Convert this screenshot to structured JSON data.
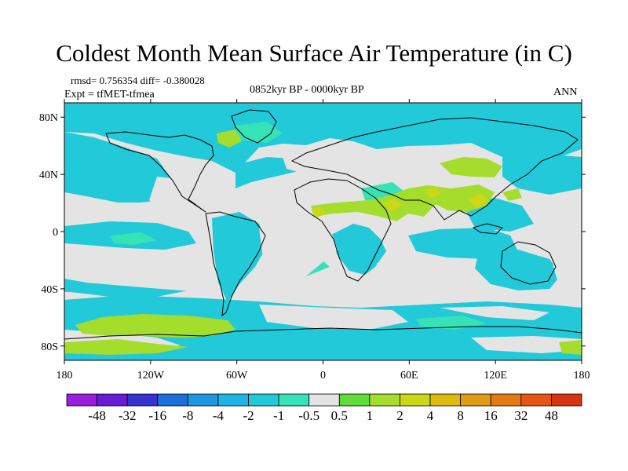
{
  "title": "Coldest Month Mean Surface Air Temperature (in C)",
  "stats": "rmsd= 0.756354 diff= -0.380028",
  "experiment": "Expt = tfMET-tfmea",
  "period": "0852kyr BP - 0000kyr BP",
  "season": "ANN",
  "axes": {
    "x_ticks": [
      {
        "lon": -180,
        "label": "180"
      },
      {
        "lon": -120,
        "label": "120W"
      },
      {
        "lon": -60,
        "label": "60W"
      },
      {
        "lon": 0,
        "label": "0"
      },
      {
        "lon": 60,
        "label": "60E"
      },
      {
        "lon": 120,
        "label": "120E"
      },
      {
        "lon": 180,
        "label": "180"
      }
    ],
    "y_ticks": [
      {
        "lat": 80,
        "label": "80N"
      },
      {
        "lat": 40,
        "label": "40N"
      },
      {
        "lat": 0,
        "label": "0"
      },
      {
        "lat": -40,
        "label": "40S"
      },
      {
        "lat": -80,
        "label": "80S"
      }
    ],
    "lon_range": [
      -180,
      180
    ],
    "lat_range": [
      -90,
      90
    ]
  },
  "colorbar": {
    "colors": [
      "#9a1dde",
      "#6a1bd6",
      "#3634cf",
      "#1b6fd6",
      "#1e96e0",
      "#20b4e6",
      "#22c9d8",
      "#37e3b6",
      "#e4e4e4",
      "#5ddc3c",
      "#a5dd2c",
      "#ccd718",
      "#dcba10",
      "#e09c12",
      "#e67a12",
      "#e85412",
      "#d83410"
    ],
    "labels": [
      "-48",
      "-32",
      "-16",
      "-8",
      "-4",
      "-2",
      "-1",
      "-0.5",
      "0.5",
      "1",
      "2",
      "4",
      "8",
      "16",
      "32",
      "48"
    ]
  },
  "legend": {
    "blue_fill": "#22c9d8",
    "cyan_fill": "#37e3b6",
    "neutral_fill": "#e4e4e4",
    "green_fill": "#a5dd2c",
    "yellow_fill": "#ccd718"
  }
}
